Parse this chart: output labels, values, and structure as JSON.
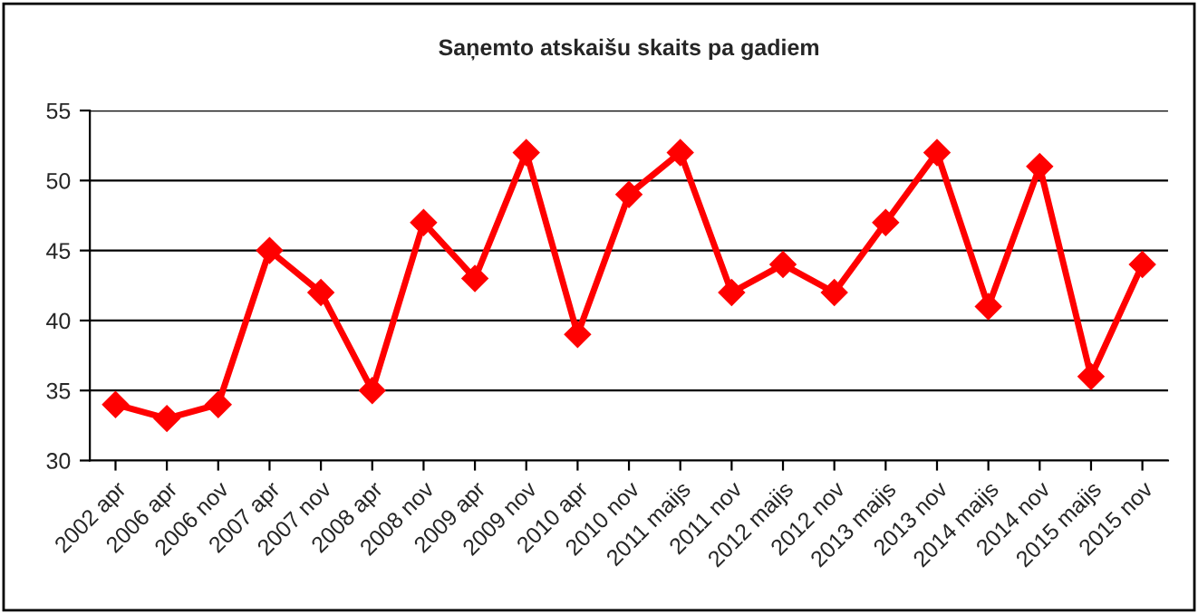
{
  "chart_data": {
    "type": "line",
    "title": "Saņemto atskaišu skaits pa gadiem",
    "categories": [
      "2002 apr",
      "2006 apr",
      "2006 nov",
      "2007 apr",
      "2007 nov",
      "2008 apr",
      "2008 nov",
      "2009 apr",
      "2009 nov",
      "2010 apr",
      "2010 nov",
      "2011 maijs",
      "2011 nov",
      "2012 maijs",
      "2012 nov",
      "2013 maijs",
      "2013 nov",
      "2014 maijs",
      "2014 nov",
      "2015 maijs",
      "2015 nov"
    ],
    "series": [
      {
        "color": "#ff0000",
        "values": [
          34,
          33,
          34,
          45,
          42,
          35,
          47,
          43,
          52,
          39,
          49,
          52,
          42,
          44,
          42,
          47,
          52,
          41,
          51,
          36,
          44
        ]
      }
    ],
    "ylim": [
      30,
      55
    ],
    "yticks": [
      30,
      35,
      40,
      45,
      50,
      55
    ],
    "grid": "y",
    "marker": "diamond",
    "line_style": "solid"
  }
}
